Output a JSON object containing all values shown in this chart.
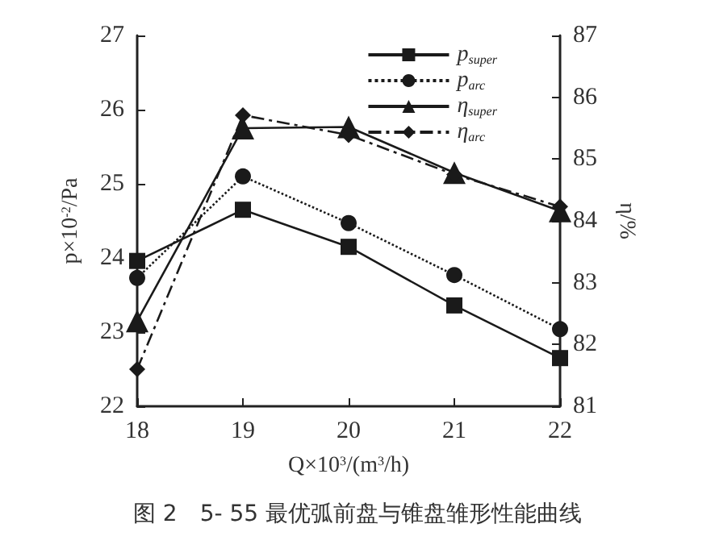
{
  "chart_data": {
    "type": "line",
    "x": [
      18,
      19,
      20,
      21,
      22
    ],
    "xlim": [
      18,
      22
    ],
    "xticks": [
      18,
      19,
      20,
      21,
      22
    ],
    "ylim": [
      22,
      27
    ],
    "yticks": [
      22,
      23,
      24,
      25,
      26,
      27
    ],
    "y2lim": [
      81,
      87
    ],
    "y2ticks": [
      81,
      82,
      83,
      84,
      85,
      86,
      87
    ],
    "xlabel": "Q×10$^{3}$/(m$^{3}$/h)",
    "ylabel": "p×10$^{-2}$/Pa",
    "y2label": "η/%",
    "annotations": [
      "图 2　5- 55 最优弧前盘与锥盘雏形性能曲线"
    ],
    "legend": "top right",
    "grid": false,
    "series": [
      {
        "name": "p$_{super}$",
        "color": "#1a1a1a",
        "marker": "square",
        "line_style": "solid",
        "values": [
          23.96,
          24.65,
          24.15,
          23.36,
          22.65
        ]
      },
      {
        "name": "p$_{arc}$",
        "color": "#1a1a1a",
        "marker": "circle",
        "line_style": "dotted",
        "values": [
          23.73,
          25.1,
          24.47,
          23.77,
          23.04
        ]
      },
      {
        "name": "η$_{super}$",
        "color": "#1a1a1a",
        "marker": "triangle",
        "line_style": "solid",
        "axis": "y2",
        "values": [
          82.38,
          85.5,
          85.52,
          84.78,
          84.16
        ]
      },
      {
        "name": "η$_{arc}$",
        "color": "#1a1a1a",
        "marker": "diamond",
        "line_style": "dashdot",
        "axis": "y2",
        "values": [
          81.6,
          85.71,
          85.39,
          84.75,
          84.23
        ]
      }
    ]
  }
}
